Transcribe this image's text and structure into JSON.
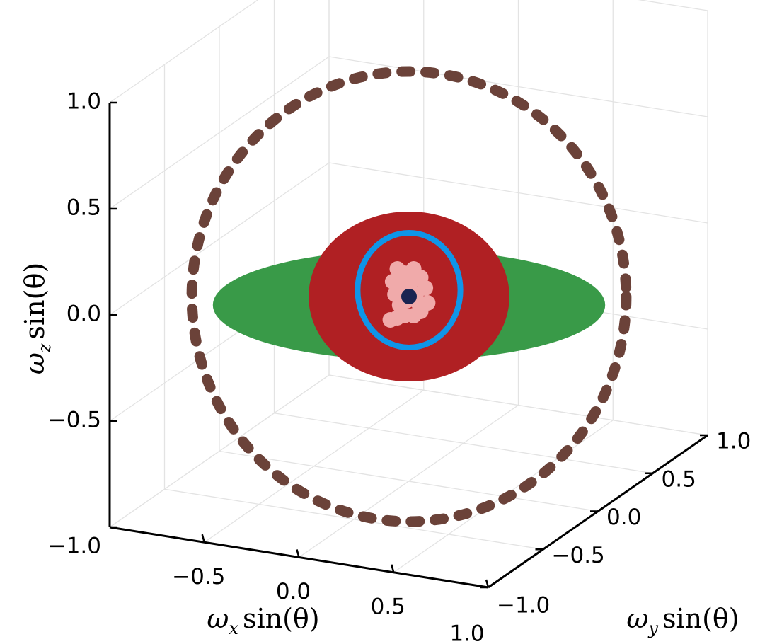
{
  "chart_data": {
    "type": "scatter",
    "projection": "3d",
    "title": "",
    "axes": {
      "x": {
        "label": {
          "base": "ω",
          "sub": "x",
          "func": "sin",
          "arg": "(θ)"
        },
        "range": [
          -1,
          1
        ],
        "ticks": [
          -0.5,
          0.0,
          0.5,
          1.0
        ],
        "tick_labels": [
          "−0.5",
          "0.0",
          "0.5",
          "1.0"
        ]
      },
      "y": {
        "label": {
          "base": "ω",
          "sub": "y",
          "func": "sin",
          "arg": "(θ)"
        },
        "range": [
          -1,
          1
        ],
        "ticks": [
          -1.0,
          -0.5,
          0.0,
          0.5,
          1.0
        ],
        "tick_labels": [
          "−1.0",
          "−0.5",
          "0.0",
          "0.5",
          "1.0"
        ]
      },
      "z": {
        "label": {
          "base": "ω",
          "sub": "z",
          "func": "sin",
          "arg": "(θ)"
        },
        "range": [
          -1,
          1
        ],
        "ticks": [
          -1.0,
          -0.5,
          0.0,
          0.5,
          1.0
        ],
        "tick_labels": [
          "−1.0",
          "−0.5",
          "0.0",
          "0.5",
          "1.0"
        ]
      }
    },
    "grid": true,
    "legend": "none",
    "series": [
      {
        "kind": "dashed-circle",
        "color": "#6b4239",
        "center": {
          "x": 0.0,
          "z": 0.09
        },
        "radius": {
          "x": 0.93,
          "z": 1.06
        }
      },
      {
        "kind": "filled-ellipse",
        "color": "#399a48",
        "center": {
          "x": 0.0,
          "z": 0.05
        },
        "radius": {
          "x": 0.84,
          "z": 0.26
        }
      },
      {
        "kind": "filled-ellipse",
        "color": "#b02023",
        "center": {
          "x": 0.0,
          "z": 0.09
        },
        "radius": {
          "x": 0.43,
          "z": 0.4
        }
      },
      {
        "kind": "circle",
        "color": "#0f95e8",
        "center": {
          "x": 0.0,
          "z": 0.12
        },
        "radius": {
          "x": 0.22,
          "z": 0.27
        }
      },
      {
        "kind": "point-cluster",
        "color": "#f0aaaa",
        "points": [
          [
            -0.05,
            0.22
          ],
          [
            -0.02,
            0.2
          ],
          [
            0.02,
            0.22
          ],
          [
            0.05,
            0.18
          ],
          [
            0.07,
            0.13
          ],
          [
            0.08,
            0.06
          ],
          [
            0.05,
            0.02
          ],
          [
            0.02,
            0.0
          ],
          [
            -0.02,
            0.0
          ],
          [
            -0.05,
            -0.01
          ],
          [
            -0.08,
            -0.02
          ],
          [
            -0.04,
            0.05
          ],
          [
            -0.06,
            0.1
          ],
          [
            -0.03,
            0.14
          ],
          [
            0.01,
            0.16
          ],
          [
            0.03,
            0.1
          ],
          [
            -0.01,
            0.07
          ],
          [
            0.0,
            0.12
          ],
          [
            -0.07,
            0.16
          ],
          [
            0.04,
            0.06
          ]
        ]
      },
      {
        "kind": "point",
        "color": "#1a2451",
        "x": 0.0,
        "z": 0.09
      }
    ]
  }
}
